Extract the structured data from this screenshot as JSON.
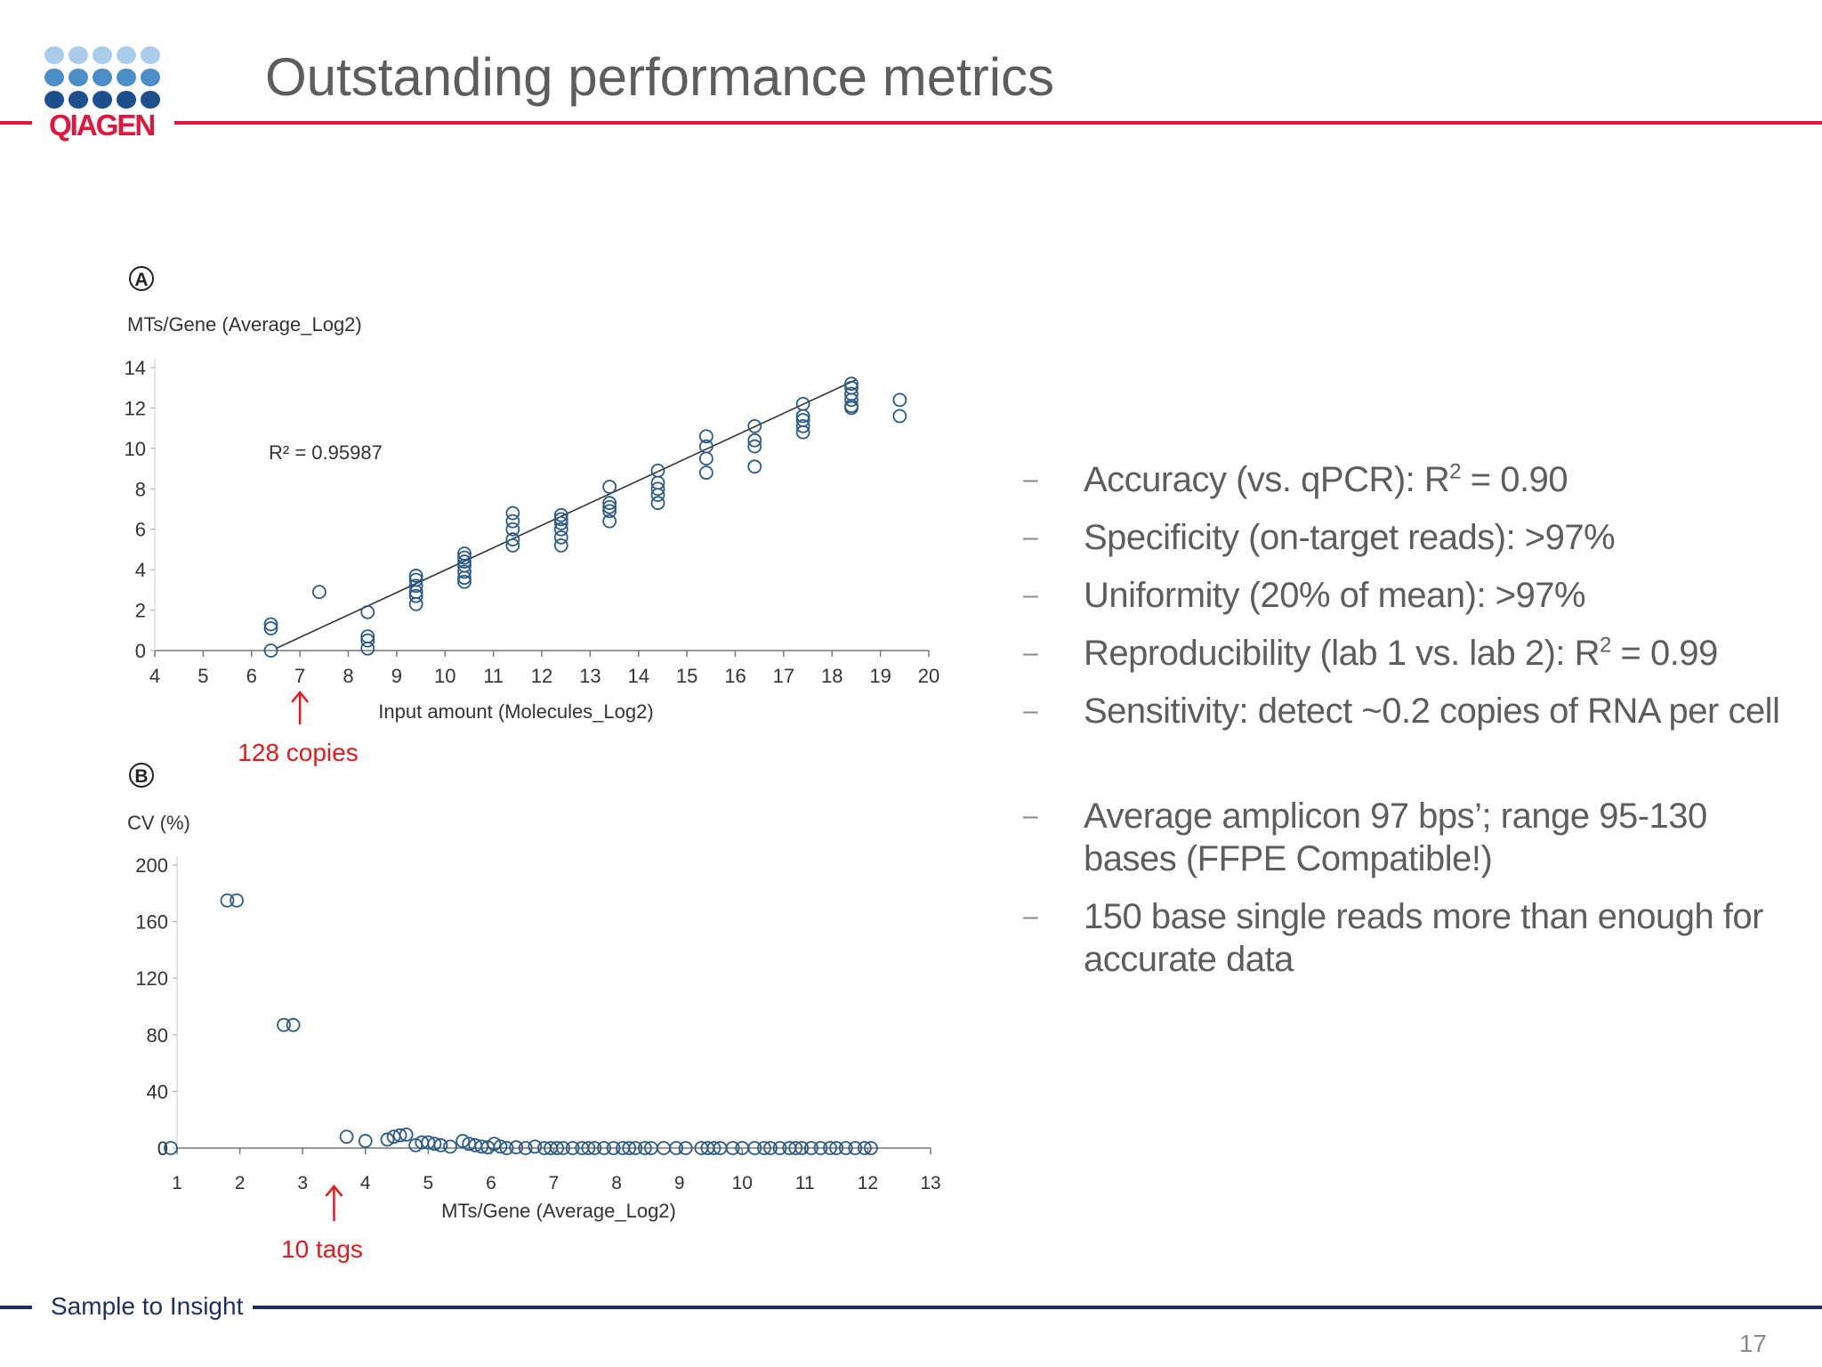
{
  "header": {
    "title": "Outstanding performance metrics",
    "logo_text": "QIAGEN"
  },
  "footer": {
    "tagline": "Sample to Insight",
    "page_number": "17"
  },
  "colors": {
    "accent_red": "#e0163c",
    "navy": "#1f2f5f",
    "marker": "#2b5a86"
  },
  "bullets": [
    {
      "pre": "Accuracy (vs. qPCR): R",
      "sup": "2",
      "post": " = 0.90"
    },
    {
      "pre": "Specificity (on-target reads): >97%"
    },
    {
      "pre": "Uniformity (20% of mean): >97%"
    },
    {
      "pre": "Reproducibility (lab 1 vs. lab 2): R",
      "sup": "2",
      "post": " = 0.99"
    },
    {
      "pre": "Sensitivity: detect ~0.2 copies of RNA per cell"
    },
    {
      "pre": "Average amplicon 97 bps’; range 95-130 bases (FFPE Compatible!)"
    },
    {
      "pre": "150 base single reads more than enough for accurate data"
    }
  ],
  "chart_data": [
    {
      "panel": "A",
      "type": "scatter",
      "ylabel": "MTs/Gene (Average_Log2)",
      "xlabel": "Input  amount (Molecules_Log2)",
      "xlim": [
        4,
        20
      ],
      "ylim": [
        0,
        14
      ],
      "xticks": [
        4,
        5,
        6,
        7,
        8,
        9,
        10,
        11,
        12,
        13,
        14,
        15,
        16,
        17,
        18,
        19,
        20
      ],
      "yticks": [
        0,
        2,
        4,
        6,
        8,
        10,
        12,
        14
      ],
      "r2_text": "R² = 0.95987",
      "fit_line": {
        "x": [
          6.5,
          18.5
        ],
        "y": [
          0.1,
          13.4
        ]
      },
      "annotation": "128 copies",
      "annotation_x": 7,
      "points": [
        [
          6.4,
          1.3
        ],
        [
          6.4,
          1.1
        ],
        [
          6.4,
          0
        ],
        [
          7.4,
          2.9
        ],
        [
          8.4,
          1.9
        ],
        [
          8.4,
          0.7
        ],
        [
          8.4,
          0.5
        ],
        [
          8.4,
          0.1
        ],
        [
          9.4,
          3.7
        ],
        [
          9.4,
          3.5
        ],
        [
          9.4,
          3.2
        ],
        [
          9.4,
          2.9
        ],
        [
          9.4,
          2.7
        ],
        [
          9.4,
          2.3
        ],
        [
          10.4,
          4.8
        ],
        [
          10.4,
          4.6
        ],
        [
          10.4,
          4.4
        ],
        [
          10.4,
          4.2
        ],
        [
          10.4,
          3.9
        ],
        [
          10.4,
          3.6
        ],
        [
          10.4,
          3.4
        ],
        [
          11.4,
          6.8
        ],
        [
          11.4,
          6.4
        ],
        [
          11.4,
          6.0
        ],
        [
          11.4,
          5.5
        ],
        [
          11.4,
          5.2
        ],
        [
          12.4,
          6.7
        ],
        [
          12.4,
          6.5
        ],
        [
          12.4,
          6.3
        ],
        [
          12.4,
          6.0
        ],
        [
          12.4,
          5.6
        ],
        [
          12.4,
          5.2
        ],
        [
          13.4,
          8.1
        ],
        [
          13.4,
          7.3
        ],
        [
          13.4,
          7.1
        ],
        [
          13.4,
          6.9
        ],
        [
          13.4,
          6.4
        ],
        [
          14.4,
          8.9
        ],
        [
          14.4,
          8.3
        ],
        [
          14.4,
          8.0
        ],
        [
          14.4,
          7.7
        ],
        [
          14.4,
          7.3
        ],
        [
          15.4,
          10.6
        ],
        [
          15.4,
          10.1
        ],
        [
          15.4,
          9.5
        ],
        [
          15.4,
          8.8
        ],
        [
          16.4,
          11.1
        ],
        [
          16.4,
          10.4
        ],
        [
          16.4,
          10.1
        ],
        [
          16.4,
          9.1
        ],
        [
          17.4,
          12.2
        ],
        [
          17.4,
          11.6
        ],
        [
          17.4,
          11.4
        ],
        [
          17.4,
          11.1
        ],
        [
          17.4,
          10.8
        ],
        [
          18.4,
          13.2
        ],
        [
          18.4,
          13.0
        ],
        [
          18.4,
          12.7
        ],
        [
          18.4,
          12.4
        ],
        [
          18.4,
          12.1
        ],
        [
          18.4,
          12.0
        ],
        [
          19.4,
          12.4
        ],
        [
          19.4,
          11.6
        ]
      ]
    },
    {
      "panel": "B",
      "type": "scatter",
      "ylabel": "CV (%)",
      "xlabel": "MTs/Gene (Average_Log2)",
      "xlim": [
        1,
        13
      ],
      "ylim": [
        0,
        200
      ],
      "xticks": [
        1,
        2,
        3,
        4,
        5,
        6,
        7,
        8,
        9,
        10,
        11,
        12,
        13
      ],
      "yticks": [
        0,
        40,
        80,
        120,
        160,
        200
      ],
      "annotation": "10 tags",
      "annotation_x": 3.5,
      "points": [
        [
          0.9,
          0
        ],
        [
          1.8,
          175
        ],
        [
          1.95,
          175
        ],
        [
          2.7,
          87
        ],
        [
          2.85,
          87
        ],
        [
          3.7,
          8
        ],
        [
          4.0,
          5
        ],
        [
          4.35,
          6
        ],
        [
          4.45,
          8
        ],
        [
          4.55,
          9
        ],
        [
          4.65,
          9.5
        ],
        [
          4.8,
          2
        ],
        [
          4.9,
          4
        ],
        [
          5.0,
          4
        ],
        [
          5.1,
          3
        ],
        [
          5.2,
          2
        ],
        [
          5.35,
          1
        ],
        [
          5.55,
          5
        ],
        [
          5.65,
          3
        ],
        [
          5.75,
          2
        ],
        [
          5.85,
          1
        ],
        [
          5.95,
          0.5
        ],
        [
          6.05,
          3
        ],
        [
          6.15,
          1
        ],
        [
          6.25,
          0
        ],
        [
          6.4,
          0.5
        ],
        [
          6.55,
          0
        ],
        [
          6.7,
          1
        ],
        [
          6.85,
          0
        ],
        [
          6.95,
          0
        ],
        [
          7.05,
          0
        ],
        [
          7.15,
          0
        ],
        [
          7.3,
          0
        ],
        [
          7.45,
          0
        ],
        [
          7.55,
          0
        ],
        [
          7.65,
          0
        ],
        [
          7.8,
          0
        ],
        [
          7.95,
          0
        ],
        [
          8.1,
          0
        ],
        [
          8.2,
          0
        ],
        [
          8.3,
          0
        ],
        [
          8.45,
          0
        ],
        [
          8.55,
          0
        ],
        [
          8.75,
          0
        ],
        [
          8.95,
          0
        ],
        [
          9.1,
          0
        ],
        [
          9.35,
          0
        ],
        [
          9.45,
          0
        ],
        [
          9.55,
          0
        ],
        [
          9.65,
          0
        ],
        [
          9.85,
          0
        ],
        [
          10.0,
          0
        ],
        [
          10.2,
          0
        ],
        [
          10.35,
          0
        ],
        [
          10.45,
          0
        ],
        [
          10.6,
          0
        ],
        [
          10.75,
          0
        ],
        [
          10.85,
          0
        ],
        [
          10.95,
          0
        ],
        [
          11.1,
          0
        ],
        [
          11.25,
          0
        ],
        [
          11.4,
          0
        ],
        [
          11.5,
          0
        ],
        [
          11.65,
          0
        ],
        [
          11.8,
          0
        ],
        [
          11.95,
          0
        ],
        [
          12.05,
          0
        ]
      ]
    }
  ]
}
